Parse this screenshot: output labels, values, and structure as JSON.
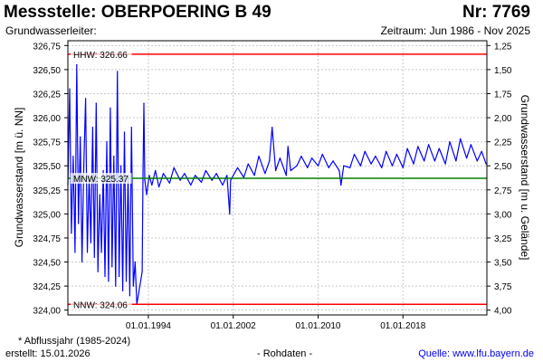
{
  "header": {
    "title": "Messstelle: OBERPOERING B 49",
    "number": "Nr: 7769",
    "subtitle": "Grundwasserleiter:",
    "period": "Zeitraum: Jun 1986 - Nov 2025"
  },
  "footer": {
    "note": "* Abflussjahr (1985-2024)",
    "created": "erstellt:  15.01.2026",
    "raw": "- Rohdaten -",
    "source_label": "Quelle:",
    "source_link": "www.lfu.bayern.de"
  },
  "colors": {
    "series": "#0000ff",
    "hhw": "#ff0000",
    "nnw": "#ff0000",
    "mnw": "#008000",
    "grid": "#c8c8c8"
  },
  "chart_data": {
    "type": "line",
    "ylabel": "Grundwasserstand [m ü. NN]",
    "y2label": "Grundwasserstand [m u. Gelände]",
    "ylim": [
      323.95,
      326.8
    ],
    "yticks": [
      "326,75",
      "326,50",
      "326,25",
      "326,00",
      "325,75",
      "325,50",
      "325,25",
      "325,00",
      "324,75",
      "324,50",
      "324,25",
      "324,00"
    ],
    "ytick_values": [
      326.75,
      326.5,
      326.25,
      326.0,
      325.75,
      325.5,
      325.25,
      325.0,
      324.75,
      324.5,
      324.25,
      324.0
    ],
    "y2ticks": [
      "1,25",
      "1,50",
      "1,75",
      "2,00",
      "2,25",
      "2,50",
      "2,75",
      "3,00",
      "3,25",
      "3,50",
      "3,75",
      "4,00"
    ],
    "y2tick_values": [
      1.25,
      1.5,
      1.75,
      2.0,
      2.25,
      2.5,
      2.75,
      3.0,
      3.25,
      3.5,
      3.75,
      4.0
    ],
    "xlim": [
      "1986-06-01",
      "2025-11-30"
    ],
    "xticks": [
      "01.01.1994",
      "01.01.2002",
      "01.01.2010",
      "01.01.2018"
    ],
    "xtick_dates": [
      "1994-01-01",
      "2002-01-01",
      "2010-01-01",
      "2018-01-01"
    ],
    "grid": true,
    "reference_lines": [
      {
        "label": "HHW: 326.66",
        "value": 326.66,
        "color": "#ff0000"
      },
      {
        "label": "MNW: 325.37",
        "value": 325.37,
        "color": "#008000"
      },
      {
        "label": "NNW: 324.06",
        "value": 324.06,
        "color": "#ff0000"
      }
    ],
    "series": [
      {
        "color": "#0000ff",
        "points": [
          [
            "1986-06-01",
            325.3
          ],
          [
            "1986-08-01",
            326.3
          ],
          [
            "1986-10-01",
            324.8
          ],
          [
            "1986-12-01",
            325.6
          ],
          [
            "1987-02-01",
            324.6
          ],
          [
            "1987-04-01",
            326.55
          ],
          [
            "1987-06-01",
            324.9
          ],
          [
            "1987-08-01",
            325.8
          ],
          [
            "1987-10-01",
            324.5
          ],
          [
            "1987-12-01",
            325.5
          ],
          [
            "1988-02-01",
            326.2
          ],
          [
            "1988-04-01",
            324.6
          ],
          [
            "1988-06-01",
            325.4
          ],
          [
            "1988-08-01",
            324.7
          ],
          [
            "1988-10-01",
            325.9
          ],
          [
            "1988-12-01",
            324.55
          ],
          [
            "1989-02-01",
            326.15
          ],
          [
            "1989-04-01",
            324.4
          ],
          [
            "1989-06-01",
            325.2
          ],
          [
            "1989-08-01",
            324.6
          ],
          [
            "1989-10-01",
            325.45
          ],
          [
            "1989-12-01",
            324.35
          ],
          [
            "1990-02-01",
            325.75
          ],
          [
            "1990-04-01",
            324.3
          ],
          [
            "1990-06-01",
            326.1
          ],
          [
            "1990-08-01",
            324.45
          ],
          [
            "1990-10-01",
            325.6
          ],
          [
            "1990-12-01",
            324.25
          ],
          [
            "1991-02-01",
            326.48
          ],
          [
            "1991-04-01",
            324.35
          ],
          [
            "1991-06-01",
            325.5
          ],
          [
            "1991-08-01",
            324.2
          ],
          [
            "1991-10-01",
            325.85
          ],
          [
            "1991-12-01",
            324.3
          ],
          [
            "1992-02-01",
            325.4
          ],
          [
            "1992-04-01",
            324.15
          ],
          [
            "1992-06-01",
            325.9
          ],
          [
            "1992-08-01",
            324.25
          ],
          [
            "1992-10-01",
            324.5
          ],
          [
            "1992-12-01",
            324.06
          ],
          [
            "1993-06-01",
            324.4
          ],
          [
            "1993-07-01",
            325.4
          ],
          [
            "1993-08-01",
            326.15
          ],
          [
            "1993-09-01",
            325.35
          ],
          [
            "1993-11-01",
            325.2
          ],
          [
            "1994-02-01",
            325.4
          ],
          [
            "1994-05-01",
            325.3
          ],
          [
            "1994-09-01",
            325.45
          ],
          [
            "1995-01-01",
            325.28
          ],
          [
            "1995-06-01",
            325.42
          ],
          [
            "1996-01-01",
            325.32
          ],
          [
            "1996-06-01",
            325.48
          ],
          [
            "1997-01-01",
            325.35
          ],
          [
            "1997-06-01",
            325.42
          ],
          [
            "1998-01-01",
            325.3
          ],
          [
            "1998-06-01",
            325.4
          ],
          [
            "1999-01-01",
            325.33
          ],
          [
            "1999-06-01",
            325.45
          ],
          [
            "2000-01-01",
            325.35
          ],
          [
            "2000-06-01",
            325.42
          ],
          [
            "2001-01-01",
            325.3
          ],
          [
            "2001-06-01",
            325.4
          ],
          [
            "2001-09-01",
            325.0
          ],
          [
            "2001-10-01",
            325.35
          ],
          [
            "2002-06-01",
            325.48
          ],
          [
            "2003-01-01",
            325.38
          ],
          [
            "2003-06-01",
            325.52
          ],
          [
            "2004-01-01",
            325.4
          ],
          [
            "2004-06-01",
            325.6
          ],
          [
            "2005-01-01",
            325.42
          ],
          [
            "2005-06-01",
            325.55
          ],
          [
            "2005-09-01",
            325.9
          ],
          [
            "2006-01-01",
            325.45
          ],
          [
            "2006-06-01",
            325.58
          ],
          [
            "2007-01-01",
            325.4
          ],
          [
            "2007-03-01",
            325.7
          ],
          [
            "2007-06-01",
            325.45
          ],
          [
            "2008-01-01",
            325.5
          ],
          [
            "2008-06-01",
            325.6
          ],
          [
            "2009-01-01",
            325.48
          ],
          [
            "2009-06-01",
            325.58
          ],
          [
            "2010-01-01",
            325.5
          ],
          [
            "2010-06-01",
            325.62
          ],
          [
            "2011-01-01",
            325.48
          ],
          [
            "2011-06-01",
            325.55
          ],
          [
            "2012-01-01",
            325.45
          ],
          [
            "2012-03-01",
            325.3
          ],
          [
            "2012-06-01",
            325.5
          ],
          [
            "2013-01-01",
            325.48
          ],
          [
            "2013-06-01",
            325.62
          ],
          [
            "2014-01-01",
            325.5
          ],
          [
            "2014-06-01",
            325.65
          ],
          [
            "2015-01-01",
            325.52
          ],
          [
            "2015-06-01",
            325.6
          ],
          [
            "2016-01-01",
            325.48
          ],
          [
            "2016-06-01",
            325.65
          ],
          [
            "2017-01-01",
            325.5
          ],
          [
            "2017-06-01",
            325.62
          ],
          [
            "2018-01-01",
            325.48
          ],
          [
            "2018-06-01",
            325.68
          ],
          [
            "2019-01-01",
            325.52
          ],
          [
            "2019-06-01",
            325.7
          ],
          [
            "2020-01-01",
            325.55
          ],
          [
            "2020-06-01",
            325.72
          ],
          [
            "2021-01-01",
            325.55
          ],
          [
            "2021-06-01",
            325.68
          ],
          [
            "2022-01-01",
            325.52
          ],
          [
            "2022-06-01",
            325.75
          ],
          [
            "2023-01-01",
            325.55
          ],
          [
            "2023-06-01",
            325.78
          ],
          [
            "2024-01-01",
            325.58
          ],
          [
            "2024-06-01",
            325.72
          ],
          [
            "2025-01-01",
            325.55
          ],
          [
            "2025-06-01",
            325.65
          ],
          [
            "2025-11-01",
            325.52
          ]
        ]
      }
    ]
  }
}
